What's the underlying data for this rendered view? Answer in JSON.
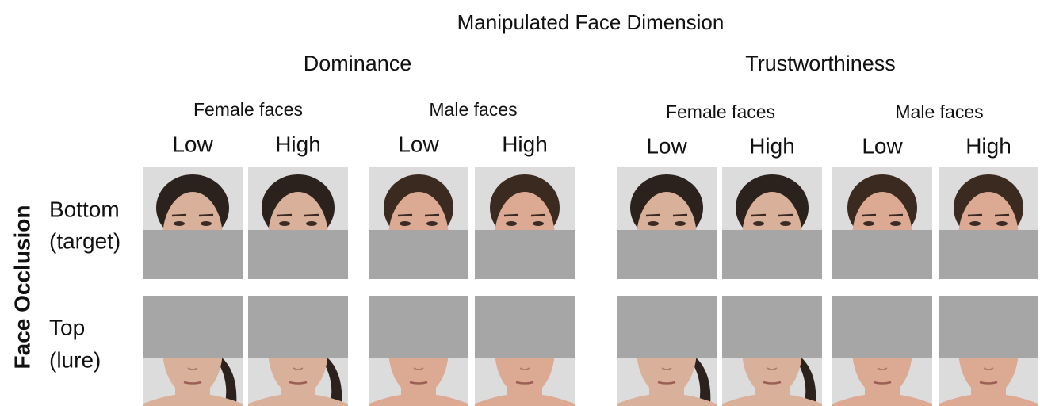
{
  "title": "Manipulated Face Dimension",
  "y_label": "Face Occlusion",
  "dimensions": [
    {
      "name": "Dominance",
      "groups": [
        {
          "name": "Female faces",
          "levels": [
            "Low",
            "High"
          ]
        },
        {
          "name": "Male faces",
          "levels": [
            "Low",
            "High"
          ]
        }
      ]
    },
    {
      "name": "Trustworthiness",
      "groups": [
        {
          "name": "Female faces",
          "levels": [
            "Low",
            "High"
          ]
        },
        {
          "name": "Male faces",
          "levels": [
            "Low",
            "High"
          ]
        }
      ]
    }
  ],
  "rows": [
    {
      "lines": [
        "Bottom",
        "(target)"
      ]
    },
    {
      "lines": [
        "Top",
        "(lure)"
      ]
    }
  ]
}
